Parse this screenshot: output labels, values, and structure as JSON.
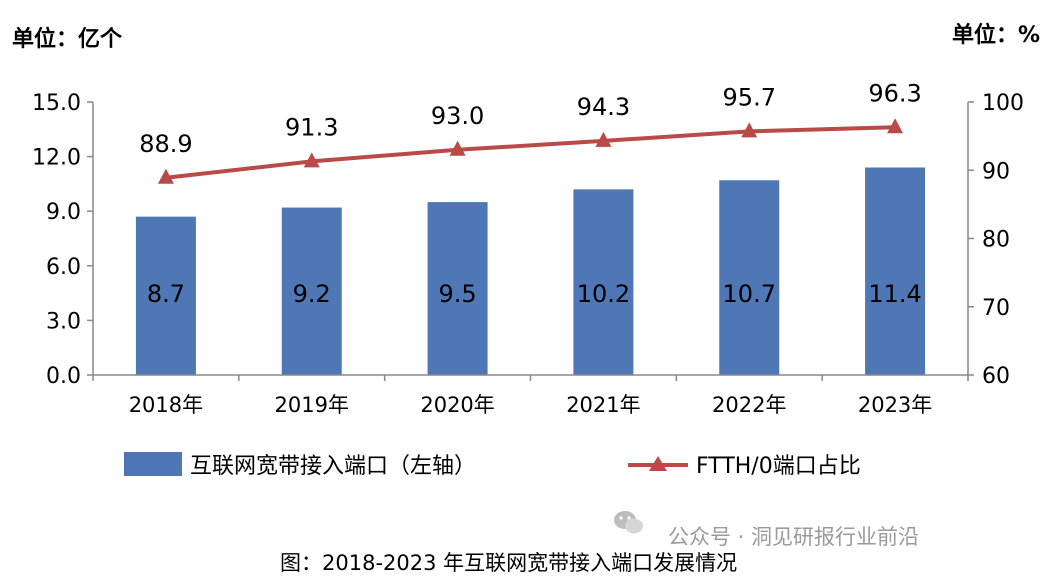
{
  "chart_data": {
    "type": "bar+line",
    "categories": [
      "2018年",
      "2019年",
      "2020年",
      "2021年",
      "2022年",
      "2023年"
    ],
    "series": [
      {
        "name": "互联网宽带接入端口（左轴）",
        "type": "bar",
        "axis": "left",
        "values": [
          8.7,
          9.2,
          9.5,
          10.2,
          10.7,
          11.4
        ]
      },
      {
        "name": "FTTH/0端口占比",
        "type": "line",
        "axis": "right",
        "values": [
          88.9,
          91.3,
          93.0,
          94.3,
          95.7,
          96.3
        ]
      }
    ],
    "left_axis": {
      "unit": "单位：亿个",
      "range": [
        0,
        15
      ],
      "ticks": [
        "0.0",
        "3.0",
        "6.0",
        "9.0",
        "12.0",
        "15.0"
      ]
    },
    "right_axis": {
      "unit": "单位：%",
      "range": [
        60,
        100
      ],
      "ticks": [
        "60",
        "70",
        "80",
        "90",
        "100"
      ]
    },
    "bar_labels": [
      "8.7",
      "9.2",
      "9.5",
      "10.2",
      "10.7",
      "11.4"
    ],
    "line_labels": [
      "88.9",
      "91.3",
      "93.0",
      "94.3",
      "95.7",
      "96.3"
    ],
    "colors": {
      "bar": "#4f76b5",
      "line": "#b94a48",
      "axis": "#888888"
    }
  },
  "caption": "图：2018-2023 年互联网宽带接入端口发展情况",
  "watermark": "公众号 · 洞见研报行业前沿",
  "wechat_icon": "wechat-icon"
}
